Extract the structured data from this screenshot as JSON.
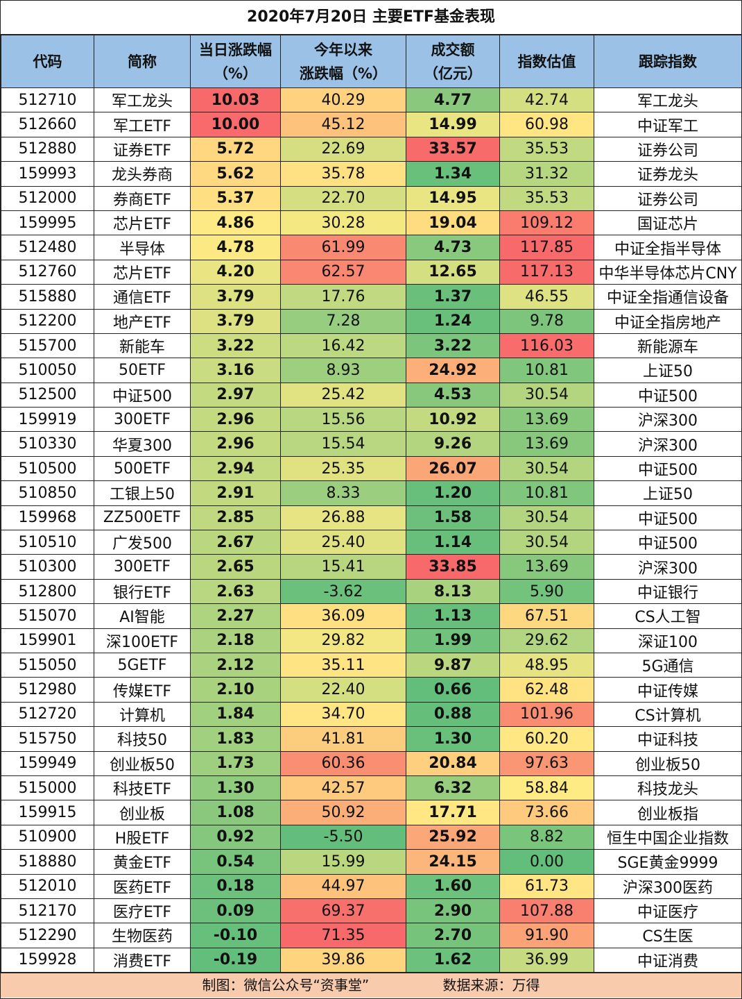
{
  "title": "2020年7月20日 主要ETF基金表现",
  "headers": [
    {
      "line1": "代码",
      "line2": ""
    },
    {
      "line1": "简称",
      "line2": ""
    },
    {
      "line1": "当日涨跌幅",
      "line2": "（%）"
    },
    {
      "line1": "今年以来",
      "line2": "涨跌幅（%）"
    },
    {
      "line1": "成交额",
      "line2": "（亿元）"
    },
    {
      "line1": "指数估值",
      "line2": ""
    },
    {
      "line1": "跟踪指数",
      "line2": ""
    }
  ],
  "footer": {
    "left": "制图：微信公众号“资事堂”",
    "right": "数据来源：万得"
  },
  "chart_data": {
    "type": "table",
    "title": "2020年7月20日 主要ETF基金表现",
    "columns": [
      "代码",
      "简称",
      "当日涨跌幅（%）",
      "今年以来涨跌幅（%）",
      "成交额（亿元）",
      "指数估值",
      "跟踪指数"
    ],
    "rows": [
      [
        "512710",
        "军工龙头",
        "10.03",
        "40.29",
        "4.77",
        "42.74",
        "军工龙头"
      ],
      [
        "512660",
        "军工ETF",
        "10.00",
        "45.12",
        "14.99",
        "60.98",
        "中证军工"
      ],
      [
        "512880",
        "证券ETF",
        "5.72",
        "22.69",
        "33.57",
        "35.53",
        "证券公司"
      ],
      [
        "159993",
        "龙头券商",
        "5.62",
        "35.78",
        "1.34",
        "31.32",
        "证券龙头"
      ],
      [
        "512000",
        "券商ETF",
        "5.37",
        "22.70",
        "14.95",
        "35.53",
        "证券公司"
      ],
      [
        "159995",
        "芯片ETF",
        "4.86",
        "30.28",
        "19.04",
        "109.12",
        "国证芯片"
      ],
      [
        "512480",
        "半导体",
        "4.78",
        "61.99",
        "4.73",
        "117.85",
        "中证全指半导体"
      ],
      [
        "512760",
        "芯片ETF",
        "4.20",
        "62.57",
        "12.65",
        "117.13",
        "中华半导体芯片CNY"
      ],
      [
        "515880",
        "通信ETF",
        "3.79",
        "17.76",
        "1.37",
        "46.55",
        "中证全指通信设备"
      ],
      [
        "512200",
        "地产ETF",
        "3.79",
        "7.28",
        "1.24",
        "9.78",
        "中证全指房地产"
      ],
      [
        "515700",
        "新能车",
        "3.22",
        "16.42",
        "3.22",
        "116.03",
        "新能源车"
      ],
      [
        "510050",
        "50ETF",
        "3.16",
        "8.93",
        "24.92",
        "10.81",
        "上证50"
      ],
      [
        "512500",
        "中证500",
        "2.97",
        "25.42",
        "4.53",
        "30.54",
        "中证500"
      ],
      [
        "159919",
        "300ETF",
        "2.96",
        "15.56",
        "10.92",
        "13.69",
        "沪深300"
      ],
      [
        "510330",
        "华夏300",
        "2.96",
        "15.54",
        "9.26",
        "13.69",
        "沪深300"
      ],
      [
        "510500",
        "500ETF",
        "2.94",
        "25.35",
        "26.07",
        "30.54",
        "中证500"
      ],
      [
        "510850",
        "工银上50",
        "2.91",
        "8.33",
        "1.20",
        "10.81",
        "上证50"
      ],
      [
        "159968",
        "ZZ500ETF",
        "2.85",
        "26.88",
        "1.58",
        "30.54",
        "中证500"
      ],
      [
        "510510",
        "广发500",
        "2.67",
        "25.40",
        "1.14",
        "30.54",
        "中证500"
      ],
      [
        "510300",
        "300ETF",
        "2.65",
        "15.41",
        "33.85",
        "13.69",
        "沪深300"
      ],
      [
        "512800",
        "银行ETF",
        "2.63",
        "-3.62",
        "8.13",
        "5.90",
        "中证银行"
      ],
      [
        "515070",
        "AI智能",
        "2.27",
        "36.09",
        "1.13",
        "67.51",
        "CS人工智"
      ],
      [
        "159901",
        "深100ETF",
        "2.18",
        "29.82",
        "1.99",
        "29.62",
        "深证100"
      ],
      [
        "515050",
        "5GETF",
        "2.12",
        "35.11",
        "9.87",
        "48.95",
        "5G通信"
      ],
      [
        "512980",
        "传媒ETF",
        "2.10",
        "22.40",
        "0.66",
        "62.48",
        "中证传媒"
      ],
      [
        "512720",
        "计算机",
        "1.84",
        "34.70",
        "0.88",
        "101.96",
        "CS计算机"
      ],
      [
        "515750",
        "科技50",
        "1.83",
        "41.81",
        "1.30",
        "60.20",
        "中证科技"
      ],
      [
        "159949",
        "创业板50",
        "1.73",
        "60.36",
        "20.84",
        "97.63",
        "创业板50"
      ],
      [
        "515000",
        "科技ETF",
        "1.30",
        "42.57",
        "6.32",
        "58.84",
        "科技龙头"
      ],
      [
        "159915",
        "创业板",
        "1.08",
        "50.92",
        "17.71",
        "73.66",
        "创业板指"
      ],
      [
        "510900",
        "H股ETF",
        "0.92",
        "-5.50",
        "25.92",
        "8.82",
        "恒生中国企业指数"
      ],
      [
        "518880",
        "黄金ETF",
        "0.54",
        "15.99",
        "24.15",
        "0.00",
        "SGE黄金9999"
      ],
      [
        "512010",
        "医药ETF",
        "0.18",
        "44.97",
        "1.60",
        "61.73",
        "沪深300医药"
      ],
      [
        "512170",
        "医疗ETF",
        "0.09",
        "69.37",
        "2.90",
        "107.88",
        "中证医疗"
      ],
      [
        "512290",
        "生物医药",
        "-0.10",
        "71.35",
        "2.70",
        "91.90",
        "CS生医"
      ],
      [
        "159928",
        "消费ETF",
        "-0.19",
        "39.86",
        "1.62",
        "36.99",
        "中证消费"
      ]
    ],
    "heatmap_columns": [
      2,
      3,
      4,
      5
    ],
    "colors": {
      "header": "#9bc2e6",
      "footer": "#f8cbad",
      "high": "#f8696b",
      "mid": "#ffeb84",
      "low": "#63be7b"
    }
  }
}
